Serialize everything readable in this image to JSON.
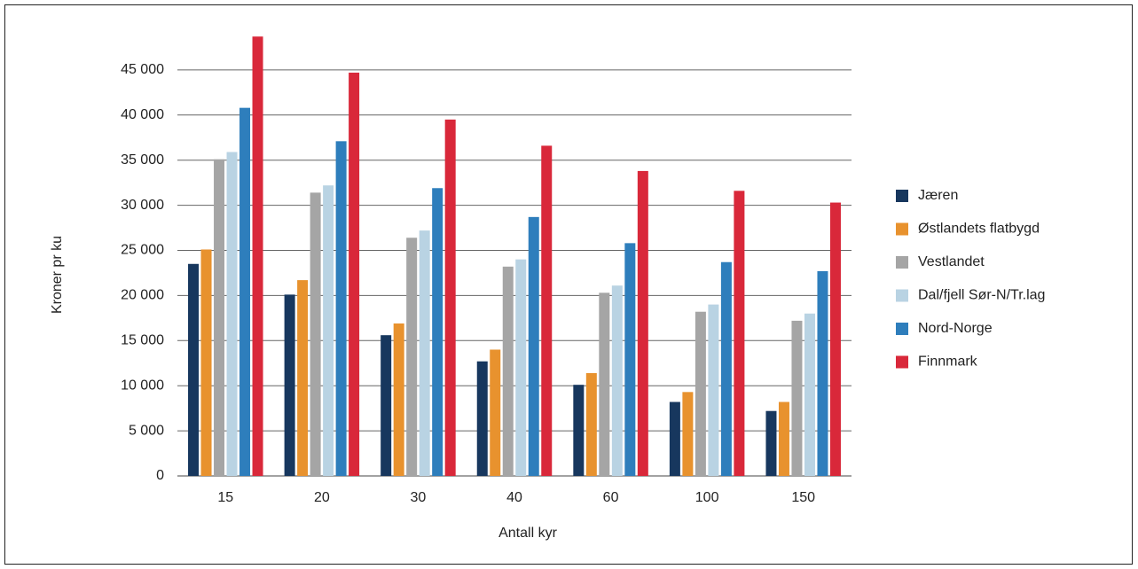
{
  "chart_data": {
    "type": "bar",
    "x_label": "Antall kyr",
    "y_label": "Kroner pr ku",
    "categories": [
      "15",
      "20",
      "30",
      "40",
      "60",
      "100",
      "150"
    ],
    "series": [
      {
        "name": "Jæren",
        "color": "#17375e",
        "values": [
          23500,
          20100,
          15600,
          12700,
          10100,
          8200,
          7200
        ]
      },
      {
        "name": "Østlandets flatbygd",
        "color": "#e8922e",
        "values": [
          25100,
          21700,
          16900,
          14000,
          11400,
          9300,
          8200
        ]
      },
      {
        "name": "Vestlandet",
        "color": "#a5a5a5",
        "values": [
          35100,
          31400,
          26400,
          23200,
          20300,
          18200,
          17200
        ]
      },
      {
        "name": "Dal/fjell Sør-N/Tr.lag",
        "color": "#b9d3e3",
        "values": [
          35900,
          32200,
          27200,
          24000,
          21100,
          19000,
          18000
        ]
      },
      {
        "name": "Nord-Norge",
        "color": "#2e7ebc",
        "values": [
          40800,
          37100,
          31900,
          28700,
          25800,
          23700,
          22700
        ]
      },
      {
        "name": "Finnmark",
        "color": "#d9283a",
        "values": [
          48700,
          44700,
          39500,
          36600,
          33800,
          31600,
          30300
        ]
      }
    ],
    "ylim": [
      0,
      50000
    ],
    "yticks": [
      0,
      {
        "value": 5000,
        "label": "5 000"
      },
      {
        "value": 10000,
        "label": "10 000"
      },
      {
        "value": 15000,
        "label": "15 000"
      },
      {
        "value": 20000,
        "label": "20 000"
      },
      {
        "value": 25000,
        "label": "25 000"
      },
      {
        "value": 30000,
        "label": "30 000"
      },
      {
        "value": 35000,
        "label": "35 000"
      },
      {
        "value": 40000,
        "label": "40 000"
      },
      {
        "value": 45000,
        "label": "45 000"
      }
    ],
    "grid": true,
    "legend": "right"
  }
}
